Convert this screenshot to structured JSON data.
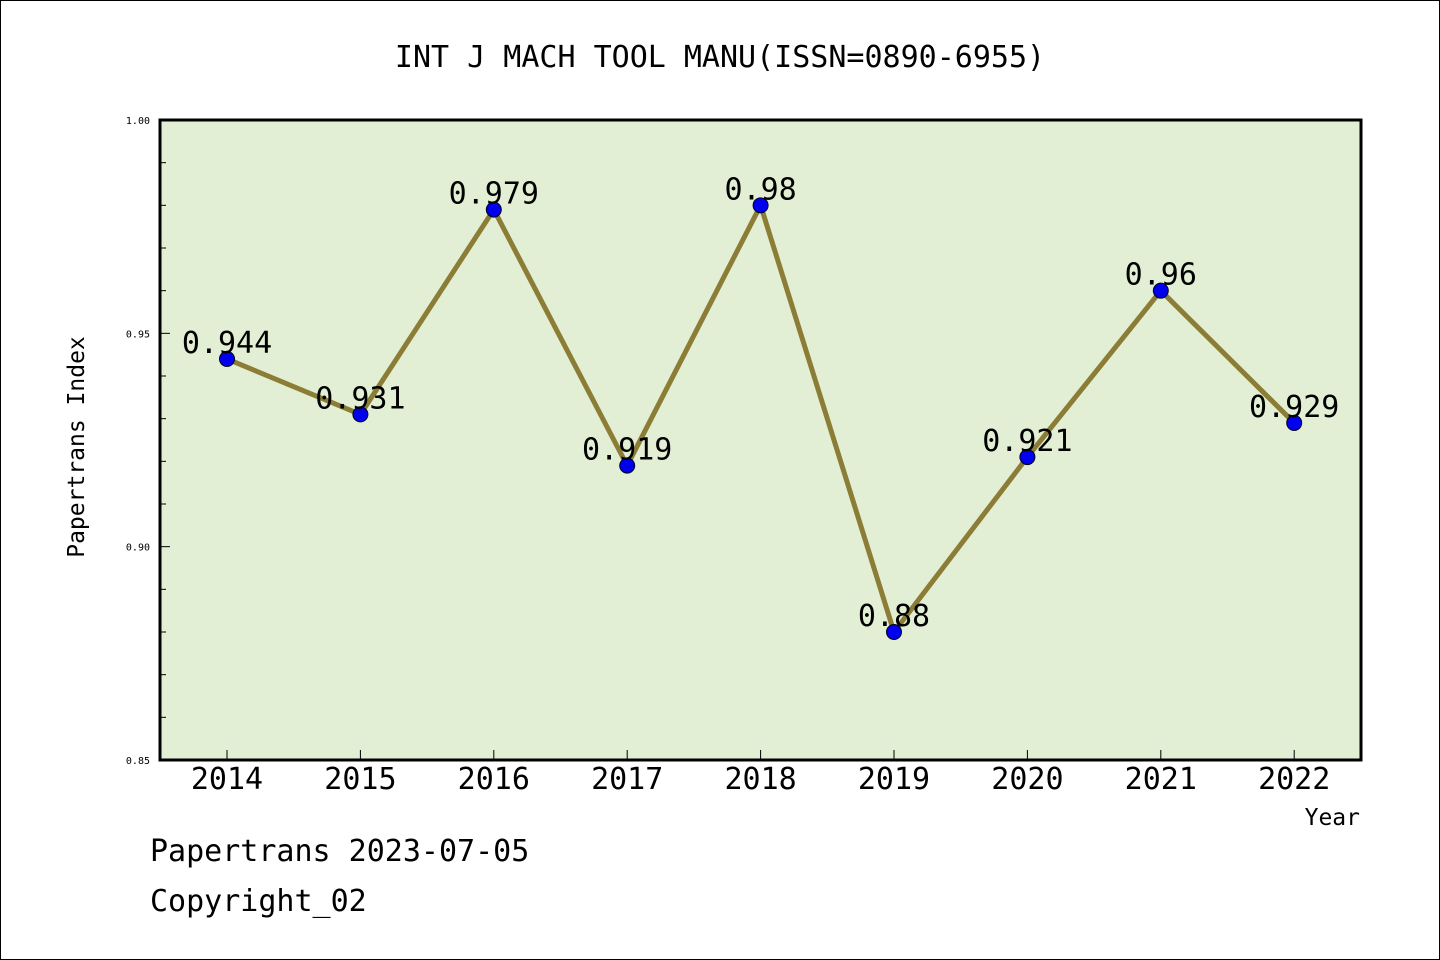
{
  "chart_data": {
    "type": "line",
    "title": "INT J MACH TOOL MANU(ISSN=0890-6955)",
    "xlabel": "Year",
    "ylabel": "Papertrans Index",
    "categories": [
      "2014",
      "2015",
      "2016",
      "2017",
      "2018",
      "2019",
      "2020",
      "2021",
      "2022"
    ],
    "series": [
      {
        "values": [
          0.944,
          0.931,
          0.979,
          0.919,
          0.98,
          0.88,
          0.921,
          0.96,
          0.929
        ]
      }
    ],
    "data_labels": [
      "0.944",
      "0.931",
      "0.979",
      "0.919",
      "0.98",
      "0.88",
      "0.921",
      "0.96",
      "0.929"
    ],
    "ylim": [
      0.85,
      1.0
    ],
    "yticks": [
      0.85,
      0.9,
      0.95,
      1.0
    ],
    "ytick_labels": [
      "0.85",
      "0.90",
      "0.95",
      "1.00"
    ],
    "grid": false,
    "legend": "none",
    "colors": {
      "plot_background": "#e2efd4",
      "line": "#8b7d35",
      "marker": "#0000ee"
    }
  },
  "footer": {
    "line1": "Papertrans 2023-07-05",
    "line2": "Copyright_02"
  }
}
